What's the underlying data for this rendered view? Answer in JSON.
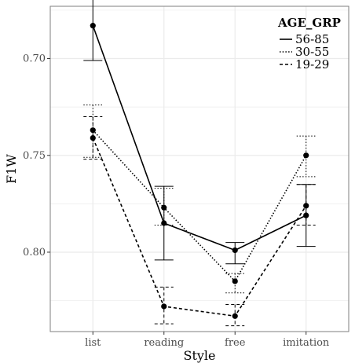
{
  "chart_data": {
    "type": "line",
    "xlabel": "Style",
    "ylabel": "F1W",
    "categories": [
      "list",
      "reading",
      "free",
      "imitation"
    ],
    "y_ticks": [
      "0.70",
      "0.75",
      "0.80"
    ],
    "y_reversed": true,
    "ylim": [
      0.673,
      0.841
    ],
    "grid": true,
    "legend": {
      "title": "AGE_GRP",
      "placement": "top-right"
    },
    "series": [
      {
        "name": "56-85",
        "line_style": "solid",
        "values": [
          0.683,
          0.785,
          0.799,
          0.781
        ],
        "err_low": [
          0.664,
          0.766,
          0.795,
          0.765
        ],
        "err_high": [
          0.701,
          0.804,
          0.806,
          0.797
        ]
      },
      {
        "name": "30-55",
        "line_style": "dotted",
        "values": [
          0.737,
          0.777,
          0.815,
          0.75
        ],
        "err_low": [
          0.724,
          0.767,
          0.811,
          0.74
        ],
        "err_high": [
          0.751,
          0.786,
          0.821,
          0.761
        ]
      },
      {
        "name": "19-29",
        "line_style": "dashed",
        "values": [
          0.741,
          0.828,
          0.833,
          0.776
        ],
        "err_low": [
          0.73,
          0.818,
          0.827,
          0.765
        ],
        "err_high": [
          0.752,
          0.837,
          0.838,
          0.786
        ]
      }
    ],
    "colors": {
      "line": "#000000",
      "grid": "#ebebeb",
      "panel_border": "#7f7f7f"
    }
  }
}
